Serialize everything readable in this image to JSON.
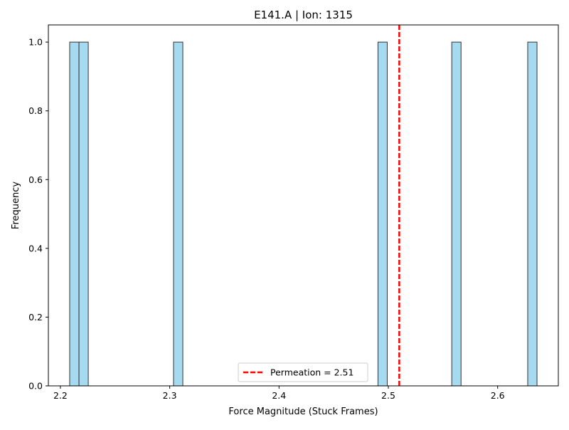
{
  "chart_data": {
    "type": "bar",
    "title": "E141.A | Ion: 1315",
    "xlabel": "Force Magnitude (Stuck Frames)",
    "ylabel": "Frequency",
    "xlim": [
      2.189,
      2.6555
    ],
    "ylim": [
      0,
      1.05
    ],
    "xticks": [
      2.2,
      2.3,
      2.4,
      2.5,
      2.6
    ],
    "xtick_labels": [
      "2.2",
      "2.3",
      "2.4",
      "2.5",
      "2.6"
    ],
    "yticks": [
      0.0,
      0.2,
      0.4,
      0.6,
      0.8,
      1.0
    ],
    "ytick_labels": [
      "0.0",
      "0.2",
      "0.4",
      "0.6",
      "0.8",
      "1.0"
    ],
    "bin_width": 0.0085,
    "bins": [
      {
        "x0": 2.2085,
        "x1": 2.217,
        "count": 1
      },
      {
        "x0": 2.217,
        "x1": 2.2255,
        "count": 1
      },
      {
        "x0": 2.3035,
        "x1": 2.312,
        "count": 1
      },
      {
        "x0": 2.4905,
        "x1": 2.499,
        "count": 1
      },
      {
        "x0": 2.558,
        "x1": 2.5665,
        "count": 1
      },
      {
        "x0": 2.6275,
        "x1": 2.636,
        "count": 1
      }
    ],
    "bar_color": "#87ceeb",
    "bar_edge_color": "#333333",
    "reference_line": {
      "x": 2.51,
      "label": "Permeation = 2.51",
      "color": "#ff0000",
      "style": "dashed"
    },
    "legend_position": "bottom-center",
    "grid": false
  }
}
